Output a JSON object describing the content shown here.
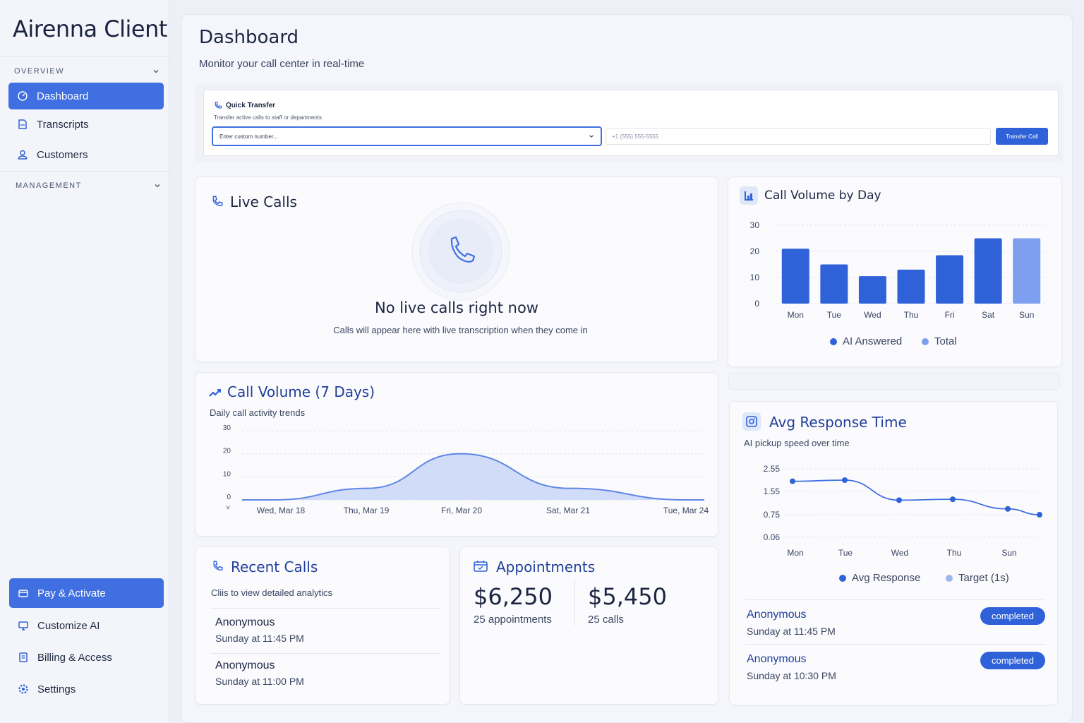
{
  "sidebar": {
    "brand": "Airenna Client",
    "overview_label": "OVERVIEW",
    "management_label": "MANAGEMENT",
    "items": [
      {
        "label": "Dashboard",
        "icon": "dashboard-icon"
      },
      {
        "label": "Transcripts",
        "icon": "document-icon"
      },
      {
        "label": "Customers",
        "icon": "user-icon"
      }
    ],
    "bottom_items": [
      {
        "label": "Pay & Activate",
        "icon": "card-icon"
      },
      {
        "label": "Customize AI",
        "icon": "monitor-icon"
      },
      {
        "label": "Billing & Access",
        "icon": "receipt-icon"
      },
      {
        "label": "Settings",
        "icon": "gear-icon"
      }
    ]
  },
  "header": {
    "title": "Dashboard",
    "subtitle": "Monitor your call center in real-time"
  },
  "quick_transfer": {
    "title": "Quick Transfer",
    "subtitle": "Transfer active calls to staff or departments",
    "select_value": "Enter custom number...",
    "input_placeholder": "+1 (555) 555-5555",
    "button_label": "Transfer Call"
  },
  "live_calls": {
    "title": "Live Calls",
    "empty_title": "No live calls right now",
    "empty_text": "Calls will appear here with live transcription when they come in"
  },
  "call_volume_by_day": {
    "title": "Call Volume by Day",
    "legend": [
      "AI Answered",
      "Total"
    ]
  },
  "call_volume_7": {
    "title": "Call Volume (7 Days)",
    "subtitle": "Daily call activity trends"
  },
  "avg_response": {
    "title": "Avg Response Time",
    "subtitle": "AI pickup speed over time",
    "legend": [
      "Avg Response",
      "Target (1s)"
    ],
    "calls": [
      {
        "name": "Anonymous",
        "time": "Sunday at 11:45 PM",
        "status": "completed"
      },
      {
        "name": "Anonymous",
        "time": "Sunday at 10:30 PM",
        "status": "completed"
      }
    ]
  },
  "recent_calls": {
    "title": "Recent Calls",
    "subtitle": "Cliis to view detailed analytics",
    "calls": [
      {
        "name": "Anonymous",
        "time": "Sunday at 11:45 PM"
      },
      {
        "name": "Anonymous",
        "time": "Sunday at 11:00 PM"
      }
    ]
  },
  "appointments": {
    "title": "Appointments",
    "stats": [
      {
        "value": "$6,250",
        "label": "25 appointments"
      },
      {
        "value": "$5,450",
        "label": "25 calls"
      }
    ]
  },
  "colors": {
    "accent": "#2f62d8",
    "accent_light": "#7e9ff0",
    "text": "#1c2542"
  },
  "chart_data": [
    {
      "type": "bar",
      "title": "Call Volume by Day",
      "categories": [
        "Mon",
        "Tue",
        "Wed",
        "Thu",
        "Fri",
        "Sat",
        "Sun"
      ],
      "series": [
        {
          "name": "AI Answered",
          "values": [
            21,
            15,
            10.5,
            13,
            18.5,
            25,
            null
          ]
        },
        {
          "name": "Total",
          "values": [
            null,
            null,
            null,
            null,
            null,
            null,
            25
          ]
        }
      ],
      "yticks": [
        "30",
        "20",
        "10",
        "0"
      ],
      "ylim": [
        0,
        30
      ],
      "grid": true,
      "legend_placement": "bottom"
    },
    {
      "type": "area",
      "title": "Call Volume (7 Days)",
      "xticks": [
        "Wed, Mar 18",
        "Thu, Mar 19",
        "Fri, Mar 20",
        "Sat, Mar 21",
        "Tue, Mar 24"
      ],
      "values": [
        0,
        5,
        20,
        5,
        0
      ],
      "yticks": [
        "30",
        "20",
        "10",
        "0"
      ],
      "ylim": [
        0,
        30
      ],
      "grid": true
    },
    {
      "type": "line",
      "title": "Avg Response Time",
      "xticks": [
        "Mon",
        "Tue",
        "Wed",
        "Thu",
        "Sun"
      ],
      "series": [
        {
          "name": "Avg Response",
          "values": [
            2.0,
            2.05,
            1.25,
            1.28,
            0.95,
            0.75
          ]
        }
      ],
      "yticks": [
        "2.55",
        "1.55",
        "0.75",
        "0.06"
      ],
      "grid": true,
      "legend_placement": "bottom"
    }
  ]
}
